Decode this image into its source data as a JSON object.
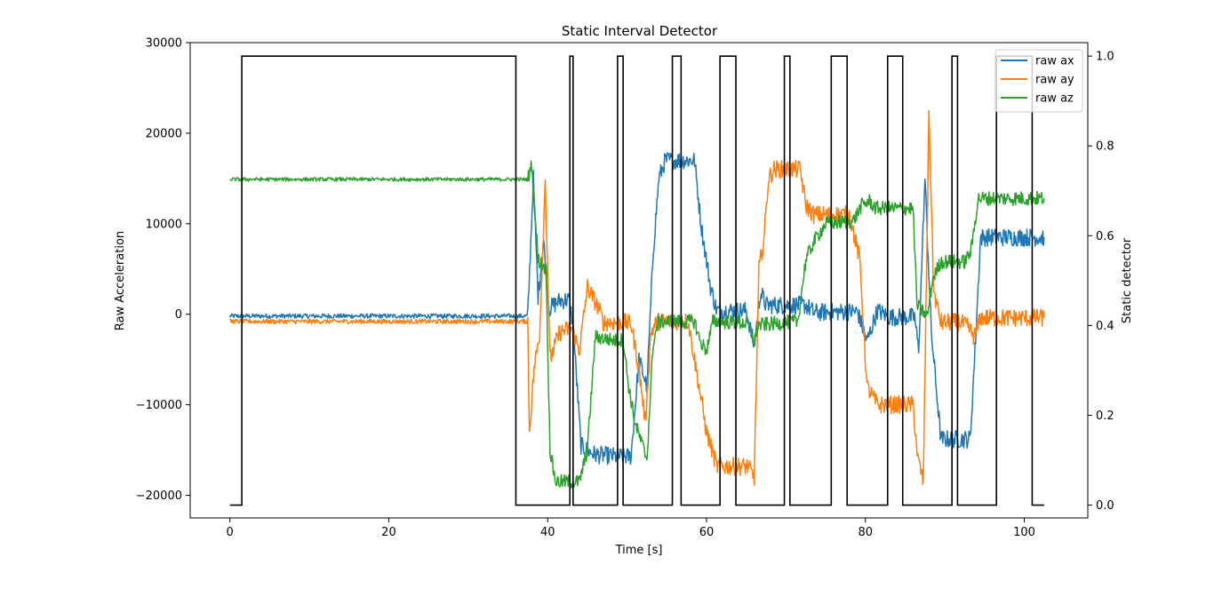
{
  "chart_data": {
    "type": "line",
    "title": "Static Interval Detector",
    "xlabel": "Time [s]",
    "ylabel": "Raw Acceleration",
    "y2label": "Static detector",
    "xlim": [
      -5,
      108
    ],
    "ylim": [
      -22500,
      30000
    ],
    "y2lim": [
      -0.0286,
      1.03
    ],
    "xticks": [
      0,
      20,
      40,
      60,
      80,
      100
    ],
    "yticks": [
      -20000,
      -10000,
      0,
      10000,
      20000,
      30000
    ],
    "y2ticks": [
      0.0,
      0.2,
      0.4,
      0.6,
      0.8,
      1.0
    ],
    "xtick_labels": [
      "0",
      "20",
      "40",
      "60",
      "80",
      "100"
    ],
    "ytick_labels": [
      "−20000",
      "−10000",
      "0",
      "10000",
      "20000",
      "30000"
    ],
    "y2tick_labels": [
      "0.0",
      "0.2",
      "0.4",
      "0.6",
      "0.8",
      "1.0"
    ],
    "legend_position": "top-right",
    "series": [
      {
        "name": "raw ax",
        "color": "#1f77b4",
        "noise": 250,
        "points": [
          [
            0,
            -200
          ],
          [
            37.5,
            -200
          ],
          [
            38.2,
            15000
          ],
          [
            38.8,
            2000
          ],
          [
            39.5,
            8000
          ],
          [
            40.2,
            600
          ],
          [
            41.5,
            1500
          ],
          [
            42.7,
            1600
          ],
          [
            43.2,
            -1200
          ],
          [
            44.2,
            -14500
          ],
          [
            45.3,
            -15200
          ],
          [
            46,
            -15500
          ],
          [
            48.5,
            -15700
          ],
          [
            50.5,
            -15700
          ],
          [
            51.5,
            -5000
          ],
          [
            52.5,
            -8000
          ],
          [
            53.3,
            7000
          ],
          [
            54,
            15000
          ],
          [
            54.8,
            17000
          ],
          [
            58.5,
            17000
          ],
          [
            59.3,
            10000
          ],
          [
            60.5,
            3000
          ],
          [
            61.3,
            400
          ],
          [
            65,
            400
          ],
          [
            66,
            -3500
          ],
          [
            66.8,
            2500
          ],
          [
            67.5,
            1000
          ],
          [
            72.5,
            1000
          ],
          [
            73.5,
            200
          ],
          [
            79,
            300
          ],
          [
            80.2,
            -3000
          ],
          [
            81.5,
            400
          ],
          [
            83,
            -300
          ],
          [
            86.2,
            -300
          ],
          [
            86.7,
            -4000
          ],
          [
            87.5,
            15000
          ],
          [
            88.3,
            -2000
          ],
          [
            89.5,
            -13800
          ],
          [
            93.2,
            -13800
          ],
          [
            93.8,
            -4000
          ],
          [
            94.5,
            8500
          ],
          [
            102.5,
            8500
          ]
        ]
      },
      {
        "name": "raw ay",
        "color": "#ff7f0e",
        "noise": 250,
        "points": [
          [
            0,
            -800
          ],
          [
            37.5,
            -800
          ],
          [
            37.7,
            -13000
          ],
          [
            38.3,
            -6000
          ],
          [
            39,
            -2000
          ],
          [
            39.7,
            15000
          ],
          [
            40.3,
            -5000
          ],
          [
            41.5,
            -2000
          ],
          [
            43,
            -1500
          ],
          [
            44,
            -4000
          ],
          [
            45,
            3000
          ],
          [
            46.5,
            500
          ],
          [
            47,
            -900
          ],
          [
            49.5,
            -900
          ],
          [
            50.5,
            -1000
          ],
          [
            51.5,
            -6000
          ],
          [
            52.3,
            -12000
          ],
          [
            53,
            -2000
          ],
          [
            53.8,
            -800
          ],
          [
            57.7,
            -800
          ],
          [
            58.5,
            -5000
          ],
          [
            60,
            -13000
          ],
          [
            61.3,
            -16800
          ],
          [
            65.2,
            -16800
          ],
          [
            66,
            -18000
          ],
          [
            66.6,
            5000
          ],
          [
            67.2,
            8000
          ],
          [
            67.8,
            15000
          ],
          [
            68.5,
            16000
          ],
          [
            71.8,
            16000
          ],
          [
            72.5,
            12000
          ],
          [
            73.5,
            11000
          ],
          [
            78,
            11000
          ],
          [
            79.3,
            6000
          ],
          [
            80.2,
            -8000
          ],
          [
            81.5,
            -10000
          ],
          [
            86,
            -10000
          ],
          [
            86.6,
            -16000
          ],
          [
            87.3,
            -18500
          ],
          [
            88,
            22500
          ],
          [
            88.6,
            2500
          ],
          [
            89.5,
            -900
          ],
          [
            92,
            -900
          ],
          [
            93,
            -1500
          ],
          [
            93.7,
            -2500
          ],
          [
            94.5,
            -400
          ],
          [
            102.5,
            -400
          ]
        ]
      },
      {
        "name": "raw az",
        "color": "#2ca02c",
        "noise": 200,
        "points": [
          [
            0,
            14900
          ],
          [
            37.5,
            14900
          ],
          [
            38,
            16500
          ],
          [
            38.8,
            6000
          ],
          [
            39.8,
            5000
          ],
          [
            40.3,
            -15000
          ],
          [
            41,
            -18500
          ],
          [
            44,
            -18500
          ],
          [
            45,
            -15000
          ],
          [
            46,
            -2500
          ],
          [
            48.5,
            -2900
          ],
          [
            49.5,
            -2800
          ],
          [
            50.2,
            -8000
          ],
          [
            51,
            -12000
          ],
          [
            52.5,
            -16000
          ],
          [
            53.3,
            -3000
          ],
          [
            54,
            -800
          ],
          [
            58.5,
            -800
          ],
          [
            59.2,
            -3000
          ],
          [
            60,
            -4000
          ],
          [
            60.8,
            -800
          ],
          [
            65.2,
            -1000
          ],
          [
            66,
            -3000
          ],
          [
            66.5,
            -1200
          ],
          [
            71.5,
            -800
          ],
          [
            72.5,
            6000
          ],
          [
            73.5,
            8000
          ],
          [
            75,
            10000
          ],
          [
            78.5,
            10300
          ],
          [
            79.5,
            12000
          ],
          [
            80.5,
            12500
          ],
          [
            81.3,
            11700
          ],
          [
            86,
            11700
          ],
          [
            86.5,
            1000
          ],
          [
            87.8,
            -200
          ],
          [
            88.5,
            4000
          ],
          [
            89.5,
            5800
          ],
          [
            92.5,
            5800
          ],
          [
            93.3,
            7000
          ],
          [
            94.2,
            12800
          ],
          [
            102.5,
            12800
          ]
        ]
      },
      {
        "name": "",
        "color": "#000000",
        "axis": "right",
        "step": true,
        "points": [
          [
            0,
            0
          ],
          [
            1.5,
            0
          ],
          [
            1.5,
            1
          ],
          [
            36,
            1
          ],
          [
            36,
            0
          ],
          [
            42.8,
            0
          ],
          [
            42.8,
            1
          ],
          [
            43.2,
            1
          ],
          [
            43.2,
            0
          ],
          [
            48.8,
            0
          ],
          [
            48.8,
            1
          ],
          [
            49.5,
            1
          ],
          [
            49.5,
            0
          ],
          [
            55.7,
            0
          ],
          [
            55.7,
            1
          ],
          [
            56.8,
            1
          ],
          [
            56.8,
            0
          ],
          [
            61.7,
            0
          ],
          [
            61.7,
            1
          ],
          [
            63.7,
            1
          ],
          [
            63.7,
            0
          ],
          [
            69.8,
            0
          ],
          [
            69.8,
            1
          ],
          [
            70.5,
            1
          ],
          [
            70.5,
            0
          ],
          [
            75.7,
            0
          ],
          [
            75.7,
            1
          ],
          [
            77.7,
            1
          ],
          [
            77.7,
            0
          ],
          [
            82.8,
            0
          ],
          [
            82.8,
            1
          ],
          [
            84.7,
            1
          ],
          [
            84.7,
            0
          ],
          [
            90.9,
            0
          ],
          [
            90.9,
            1
          ],
          [
            91.6,
            1
          ],
          [
            91.6,
            0
          ],
          [
            96.5,
            0
          ],
          [
            96.5,
            1
          ],
          [
            101,
            1
          ],
          [
            101,
            0
          ],
          [
            102.5,
            0
          ]
        ]
      }
    ]
  }
}
